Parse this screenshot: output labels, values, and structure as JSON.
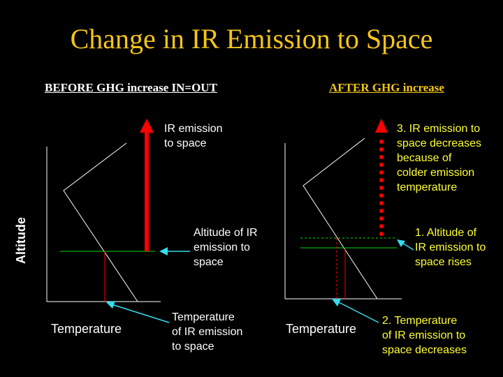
{
  "title": "Change in IR Emission to Space",
  "left": {
    "subtitle": "BEFORE GHG increase IN=OUT",
    "arrow_label": "IR emission\nto space",
    "altitude_label": "Altitude of IR\nemission to\nspace",
    "temperature_label": "Temperature\nof IR emission\nto space",
    "x_axis_label": "Temperature",
    "y_axis_label": "Altitude"
  },
  "right": {
    "subtitle": "AFTER GHG increase",
    "arrow_label": "3. IR emission to\nspace decreases\nbecause of\ncolder emission\ntemperature",
    "altitude_label": "1. Altitude of\nIR emission to\nspace rises",
    "temperature_label": "2. Temperature\nof IR emission to\nspace decreases",
    "x_axis_label": "Temperature"
  },
  "colors": {
    "title": "#f5c518",
    "annotation": "#ffff33",
    "arrow": "#ff0000",
    "level_line": "#00dd00",
    "pointer": "#33ddee",
    "profile": "#ffffff"
  }
}
